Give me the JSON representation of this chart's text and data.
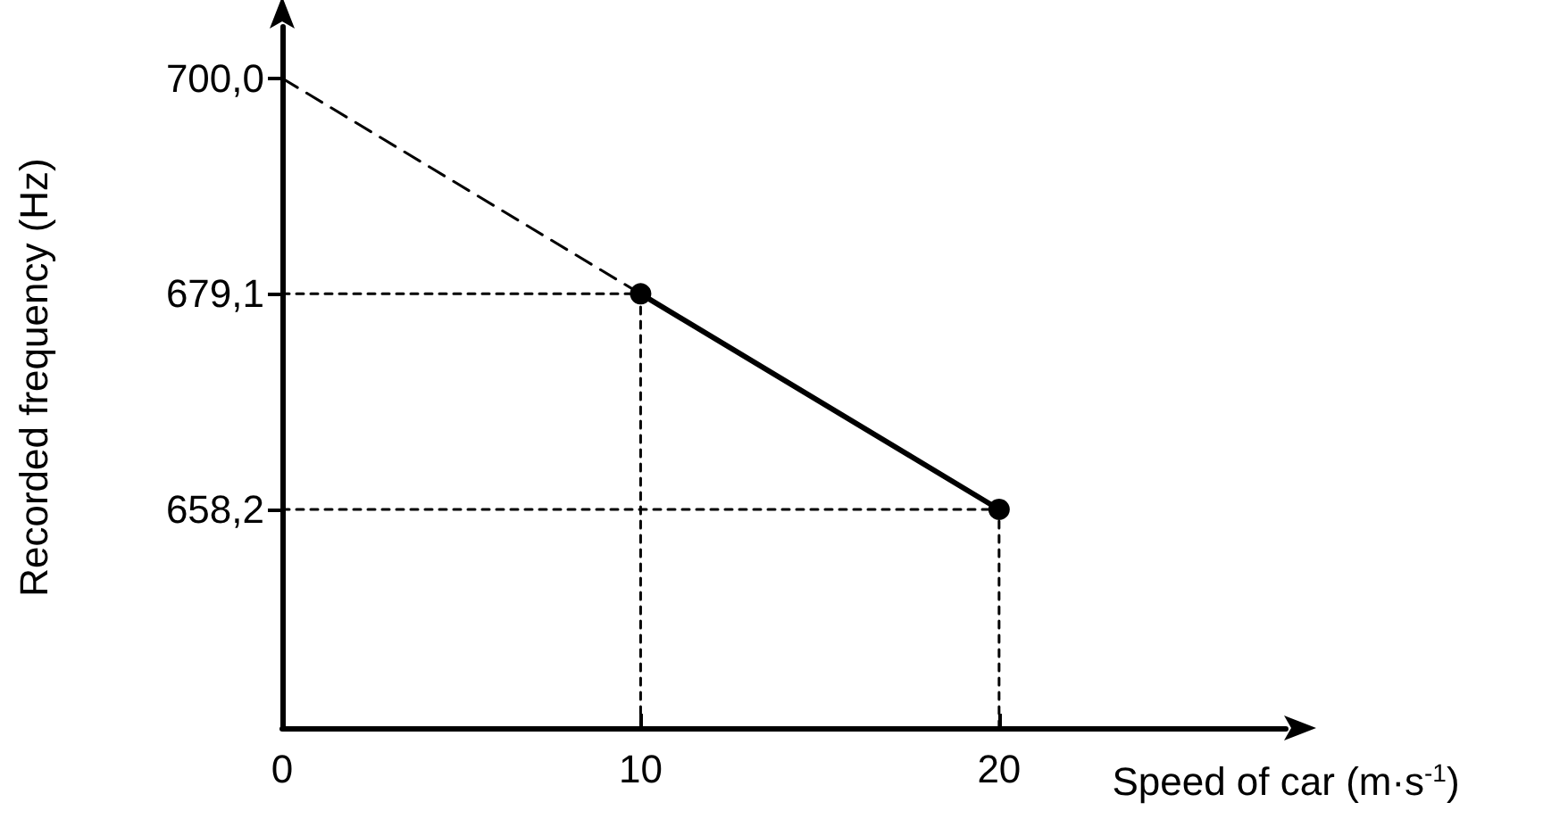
{
  "chart_data": {
    "type": "line",
    "xlabel": "Speed of car (m·s$^{-1}$)",
    "ylabel": "Recorded frequency (Hz)",
    "xlim": [
      0,
      28
    ],
    "ylim": [
      637,
      705
    ],
    "xticks": [
      0,
      10,
      20
    ],
    "yticks": [
      {
        "value": 700,
        "label": "700,0"
      },
      {
        "value": 679.1,
        "label": "679,1"
      },
      {
        "value": 658.2,
        "label": "658,2"
      }
    ],
    "grid": false,
    "series": [
      {
        "x": [
          10,
          20
        ],
        "values": [
          679.1,
          658.2
        ],
        "color": "#000000",
        "line_style": "solid",
        "marker": "circle"
      },
      {
        "x": [
          0,
          10
        ],
        "values": [
          700,
          679.1
        ],
        "color": "#000000",
        "line_style": "dashed",
        "marker": "none"
      },
      {
        "x": [
          0,
          10
        ],
        "values": [
          679.1,
          679.1
        ],
        "color": "#000000",
        "line_style": "dotted",
        "marker": "none"
      },
      {
        "x": [
          10,
          10
        ],
        "values": [
          637,
          679.1
        ],
        "color": "#000000",
        "line_style": "dotted",
        "marker": "none"
      },
      {
        "x": [
          0,
          20
        ],
        "values": [
          658.2,
          658.2
        ],
        "color": "#000000",
        "line_style": "dotted",
        "marker": "none"
      },
      {
        "x": [
          20,
          20
        ],
        "values": [
          637,
          658.2
        ],
        "color": "#000000",
        "line_style": "dotted",
        "marker": "none"
      }
    ]
  }
}
